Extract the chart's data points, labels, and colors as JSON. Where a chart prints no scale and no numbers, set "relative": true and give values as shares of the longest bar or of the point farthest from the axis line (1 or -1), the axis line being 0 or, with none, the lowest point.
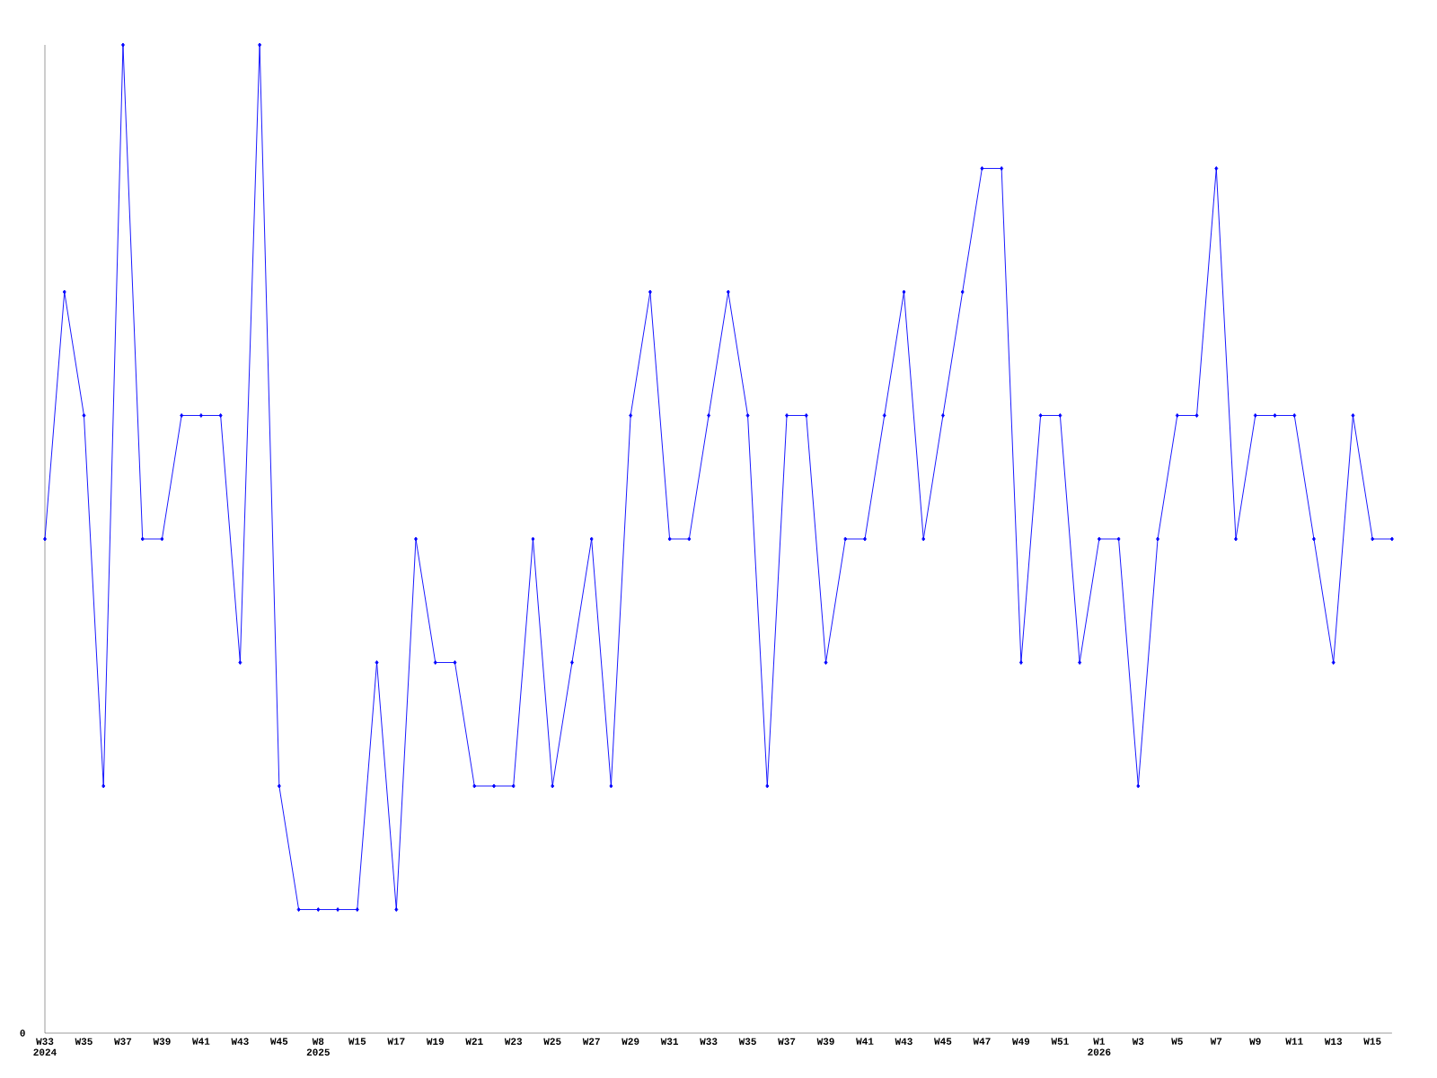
{
  "chart_data": {
    "type": "line",
    "relative": true,
    "color": "#0000ff",
    "marker": "diamond",
    "line_style": "solid",
    "categories": [
      "W33 2024",
      null,
      "W35",
      null,
      "W37",
      null,
      "W39",
      null,
      "W41",
      null,
      "W43",
      null,
      "W45",
      null,
      "W8 2025",
      null,
      "W15",
      null,
      "W17",
      null,
      "W19",
      null,
      "W21",
      null,
      "W23",
      null,
      "W25",
      null,
      "W27",
      null,
      "W29",
      null,
      "W31",
      null,
      "W33",
      null,
      "W35",
      null,
      "W37",
      null,
      "W39",
      null,
      "W41",
      null,
      "W43",
      null,
      "W45",
      null,
      "W47",
      null,
      "W49",
      null,
      "W51",
      null,
      "W1 2026",
      null,
      "W3",
      null,
      "W5",
      null,
      "W7",
      null,
      "W9",
      null,
      "W11",
      null,
      "W13",
      null,
      "W15",
      null
    ],
    "values": [
      0.5,
      0.75,
      0.625,
      0.25,
      1,
      0.5,
      0.5,
      0.625,
      0.625,
      0.625,
      0.375,
      1,
      0.25,
      0.125,
      0.125,
      0.125,
      0.125,
      0.375,
      0.125,
      0.5,
      0.375,
      0.375,
      0.25,
      0.25,
      0.25,
      0.5,
      0.25,
      0.375,
      0.5,
      0.25,
      0.625,
      0.75,
      0.5,
      0.5,
      0.625,
      0.75,
      0.625,
      0.25,
      0.625,
      0.625,
      0.375,
      0.5,
      0.5,
      0.625,
      0.75,
      0.5,
      0.625,
      0.75,
      0.875,
      0.875,
      0.375,
      0.625,
      0.625,
      0.375,
      0.5,
      0.5,
      0.25,
      0.5,
      0.625,
      0.625,
      0.875,
      0.5,
      0.625,
      0.625,
      0.625,
      0.5,
      0.375,
      0.625,
      0.5,
      0.5
    ],
    "annotations": [
      "0"
    ]
  }
}
